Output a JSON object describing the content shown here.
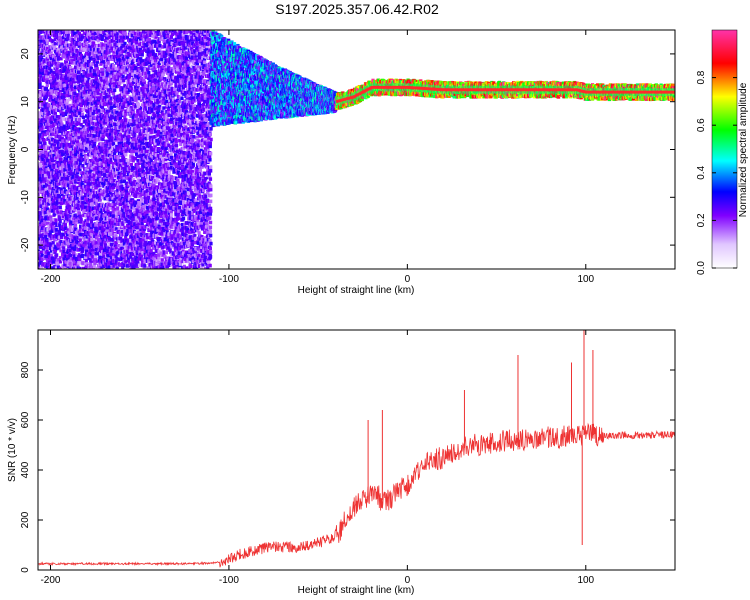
{
  "page": {
    "title": "S197.2025.357.06.42.R02"
  },
  "chart_data": [
    {
      "type": "heatmap",
      "title": "S197.2025.357.06.42.R02",
      "xlabel": "Height of straight line (km)",
      "ylabel": "Frequency (Hz)",
      "xlim": [
        -207,
        150
      ],
      "ylim": [
        -25,
        25
      ],
      "x_ticks": [
        -200,
        -100,
        0,
        100
      ],
      "y_ticks": [
        -20,
        -10,
        0,
        10,
        20
      ],
      "colorbar": {
        "label": "Normalized spectral amplitude",
        "range": [
          0.0,
          1.0
        ],
        "ticks": [
          0.0,
          0.2,
          0.4,
          0.6,
          0.8
        ],
        "tick_labels": [
          "0.0",
          "0.2",
          "0.4",
          "0.6",
          "0.8"
        ],
        "colormap": "rainbow",
        "stops": [
          "#ffffff",
          "#8000ff",
          "#0000ff",
          "#00ffff",
          "#00ff00",
          "#ffff00",
          "#ff0000",
          "#ff33aa"
        ]
      },
      "features": [
        {
          "x_range": [
            -207,
            -110
          ],
          "freq_range": [
            -25,
            25
          ],
          "amplitude_range": [
            0.05,
            0.25
          ]
        },
        {
          "x_range": [
            -110,
            -40
          ],
          "freq_range": [
            5,
            25
          ],
          "amplitude_range": [
            0.1,
            0.5
          ]
        },
        {
          "x_range": [
            -40,
            150
          ],
          "freq_range": [
            10,
            14
          ],
          "amplitude_range": [
            0.5,
            1.0
          ]
        }
      ],
      "ridge": [
        {
          "x": -40,
          "f": 10
        },
        {
          "x": -30,
          "f": 11
        },
        {
          "x": -20,
          "f": 13
        },
        {
          "x": 0,
          "f": 13
        },
        {
          "x": 20,
          "f": 12.5
        },
        {
          "x": 60,
          "f": 12.5
        },
        {
          "x": 95,
          "f": 12.5
        },
        {
          "x": 100,
          "f": 12
        },
        {
          "x": 150,
          "f": 12
        }
      ]
    },
    {
      "type": "line",
      "xlabel": "Height of straight line (km)",
      "ylabel": "SNR (10 * v/v)",
      "xlim": [
        -207,
        150
      ],
      "ylim": [
        0,
        960
      ],
      "x_ticks": [
        -200,
        -100,
        0,
        100
      ],
      "y_ticks": [
        0,
        200,
        400,
        600,
        800
      ],
      "color": "#ee3333",
      "series": [
        {
          "x": [
            -207,
            -180,
            -150,
            -120,
            -105,
            -95,
            -85,
            -75,
            -65,
            -55,
            -45,
            -38,
            -35,
            -30,
            -25,
            -20,
            -18,
            -15,
            -10,
            -5,
            0,
            5,
            10,
            15,
            20,
            25,
            30,
            35,
            40,
            45,
            50,
            55,
            60,
            65,
            70,
            75,
            80,
            85,
            90,
            95,
            100,
            105,
            110,
            120,
            130,
            140,
            150
          ],
          "y": [
            25,
            25,
            25,
            25,
            30,
            60,
            80,
            95,
            90,
            100,
            120,
            150,
            200,
            250,
            280,
            300,
            320,
            280,
            280,
            320,
            340,
            380,
            420,
            440,
            450,
            470,
            480,
            500,
            500,
            510,
            510,
            520,
            520,
            520,
            530,
            530,
            530,
            530,
            540,
            540,
            540,
            540,
            540,
            540,
            540,
            540,
            540
          ]
        }
      ],
      "spikes": [
        {
          "x": -22,
          "y": 600
        },
        {
          "x": -14,
          "y": 640
        },
        {
          "x": 32,
          "y": 720
        },
        {
          "x": 62,
          "y": 860
        },
        {
          "x": 92,
          "y": 830
        },
        {
          "x": 99,
          "y": 960
        },
        {
          "x": 104,
          "y": 880
        },
        {
          "x": 98,
          "y": 100
        }
      ]
    }
  ]
}
